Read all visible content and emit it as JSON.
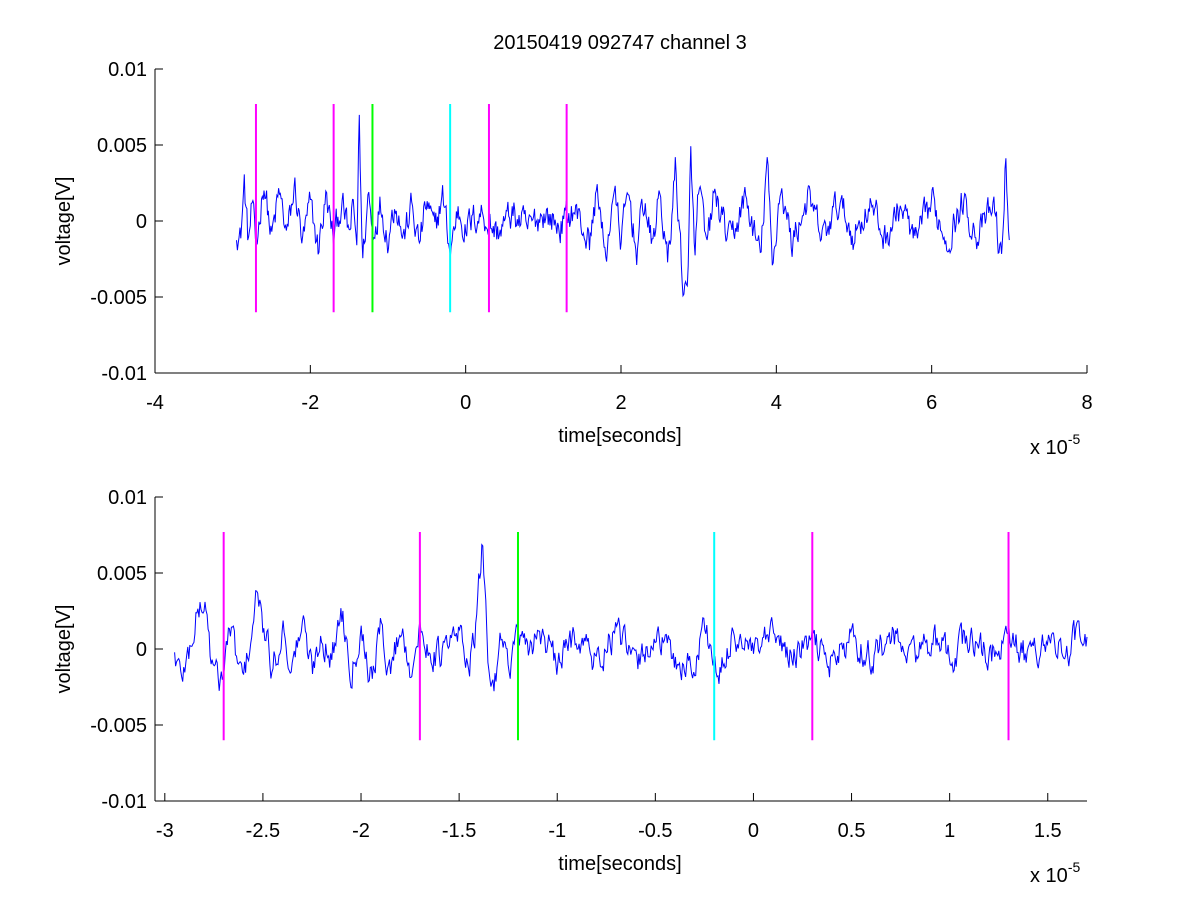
{
  "title": "20150419 092747 channel 3",
  "chart_data": [
    {
      "type": "line",
      "title": "20150419 092747 channel 3",
      "xlabel": "time[seconds]",
      "ylabel": "voltage[V]",
      "x_multiplier": "x 10",
      "x_exponent": "-5",
      "xlim": [
        -4,
        8
      ],
      "ylim": [
        -0.01,
        0.01
      ],
      "xticks": [
        -4,
        -2,
        0,
        2,
        4,
        6,
        8
      ],
      "xtick_labels": [
        "-4",
        "-2",
        "0",
        "2",
        "4",
        "6",
        "8"
      ],
      "yticks": [
        -0.01,
        -0.005,
        0,
        0.005,
        0.01
      ],
      "ytick_labels": [
        "-0.01",
        "-0.005",
        "0",
        "0.005",
        "0.01"
      ],
      "grid": false,
      "series": [
        {
          "color": "#0000ff",
          "x_range": [
            -2.95,
            7.0
          ],
          "points": [
            [
              -2.95,
              -0.0004
            ],
            [
              -2.9,
              -0.0012
            ],
            [
              -2.85,
              0.0025
            ],
            [
              -2.8,
              -0.0015
            ],
            [
              -2.75,
              0.001
            ],
            [
              -2.7,
              -0.002
            ],
            [
              -2.6,
              0.0028
            ],
            [
              -2.5,
              -0.0012
            ],
            [
              -2.4,
              0.0018
            ],
            [
              -2.3,
              -0.001
            ],
            [
              -2.2,
              0.0022
            ],
            [
              -2.1,
              -0.0015
            ],
            [
              -2.0,
              0.001
            ],
            [
              -1.9,
              -0.0018
            ],
            [
              -1.8,
              0.0015
            ],
            [
              -1.7,
              -0.0012
            ],
            [
              -1.6,
              0.0012
            ],
            [
              -1.5,
              -0.001
            ],
            [
              -1.45,
              0.0008
            ],
            [
              -1.4,
              -0.0015
            ],
            [
              -1.37,
              0.0071
            ],
            [
              -1.33,
              -0.0028
            ],
            [
              -1.25,
              0.002
            ],
            [
              -1.2,
              -0.0008
            ],
            [
              -1.1,
              0.0012
            ],
            [
              -1.0,
              -0.001
            ],
            [
              -0.9,
              0.0015
            ],
            [
              -0.8,
              -0.0012
            ],
            [
              -0.7,
              0.001
            ],
            [
              -0.6,
              -0.0015
            ],
            [
              -0.5,
              0.0012
            ],
            [
              -0.4,
              -0.0008
            ],
            [
              -0.3,
              0.0018
            ],
            [
              -0.2,
              -0.002
            ],
            [
              -0.1,
              0.0008
            ],
            [
              0.0,
              -0.0005
            ],
            [
              0.2,
              0.0006
            ],
            [
              0.4,
              -0.0008
            ],
            [
              0.6,
              0.0005
            ],
            [
              0.8,
              -0.0006
            ],
            [
              1.0,
              0.0006
            ],
            [
              1.2,
              -0.0004
            ],
            [
              1.4,
              0.0008
            ],
            [
              1.6,
              -0.0015
            ],
            [
              1.7,
              0.0025
            ],
            [
              1.8,
              -0.003
            ],
            [
              1.9,
              0.0022
            ],
            [
              2.0,
              -0.0012
            ],
            [
              2.1,
              0.0018
            ],
            [
              2.2,
              -0.002
            ],
            [
              2.3,
              0.0015
            ],
            [
              2.4,
              -0.0018
            ],
            [
              2.5,
              0.002
            ],
            [
              2.6,
              -0.003
            ],
            [
              2.7,
              0.0035
            ],
            [
              2.8,
              -0.0042
            ],
            [
              2.86,
              -0.0053
            ],
            [
              2.9,
              0.005
            ],
            [
              2.95,
              -0.003
            ],
            [
              3.0,
              0.0025
            ],
            [
              3.1,
              -0.002
            ],
            [
              3.2,
              0.0018
            ],
            [
              3.4,
              -0.0015
            ],
            [
              3.6,
              0.0015
            ],
            [
              3.8,
              -0.0025
            ],
            [
              3.88,
              0.0042
            ],
            [
              3.95,
              -0.0035
            ],
            [
              4.05,
              0.0025
            ],
            [
              4.2,
              -0.0015
            ],
            [
              4.4,
              0.0015
            ],
            [
              4.6,
              -0.0012
            ],
            [
              4.8,
              0.0012
            ],
            [
              5.0,
              -0.001
            ],
            [
              5.2,
              0.0012
            ],
            [
              5.4,
              -0.0012
            ],
            [
              5.6,
              0.001
            ],
            [
              5.8,
              -0.0015
            ],
            [
              6.0,
              0.0012
            ],
            [
              6.2,
              -0.0012
            ],
            [
              6.4,
              0.0012
            ],
            [
              6.6,
              -0.001
            ],
            [
              6.8,
              0.001
            ],
            [
              6.9,
              -0.0028
            ],
            [
              6.95,
              0.0038
            ],
            [
              7.0,
              -0.0008
            ]
          ]
        }
      ],
      "markers": [
        {
          "x": -2.7,
          "y_range": [
            -0.006,
            0.0077
          ],
          "color": "#ff00ff"
        },
        {
          "x": -1.7,
          "y_range": [
            -0.006,
            0.0077
          ],
          "color": "#ff00ff"
        },
        {
          "x": -1.2,
          "y_range": [
            -0.006,
            0.0077
          ],
          "color": "#00ff00"
        },
        {
          "x": -0.2,
          "y_range": [
            -0.006,
            0.0077
          ],
          "color": "#00ffff"
        },
        {
          "x": 0.3,
          "y_range": [
            -0.006,
            0.0077
          ],
          "color": "#ff00ff"
        },
        {
          "x": 1.3,
          "y_range": [
            -0.006,
            0.0077
          ],
          "color": "#ff00ff"
        }
      ]
    },
    {
      "type": "line",
      "title": "",
      "xlabel": "time[seconds]",
      "ylabel": "voltage[V]",
      "x_multiplier": "x 10",
      "x_exponent": "-5",
      "xlim": [
        -3.05,
        1.7
      ],
      "ylim": [
        -0.01,
        0.01
      ],
      "xticks": [
        -3,
        -2.5,
        -2,
        -1.5,
        -1,
        -0.5,
        0,
        0.5,
        1,
        1.5
      ],
      "xtick_labels": [
        "-3",
        "-2.5",
        "-2",
        "-1.5",
        "-1",
        "-0.5",
        "0",
        "0.5",
        "1",
        "1.5"
      ],
      "yticks": [
        -0.01,
        -0.005,
        0,
        0.005,
        0.01
      ],
      "ytick_labels": [
        "-0.01",
        "-0.005",
        "0",
        "0.005",
        "0.01"
      ],
      "grid": false,
      "series": [
        {
          "color": "#0000ff",
          "x_range": [
            -2.95,
            1.7
          ],
          "points": [
            [
              -2.95,
              -0.0003
            ],
            [
              -2.92,
              -0.0018
            ],
            [
              -2.88,
              -0.0005
            ],
            [
              -2.85,
              0.0015
            ],
            [
              -2.82,
              0.0028
            ],
            [
              -2.79,
              0.0028
            ],
            [
              -2.76,
              -0.001
            ],
            [
              -2.73,
              -0.0022
            ],
            [
              -2.7,
              -0.0015
            ],
            [
              -2.67,
              0.0015
            ],
            [
              -2.63,
              -0.0008
            ],
            [
              -2.6,
              -0.0022
            ],
            [
              -2.56,
              0.001
            ],
            [
              -2.53,
              0.0035
            ],
            [
              -2.5,
              0.0015
            ],
            [
              -2.45,
              -0.0015
            ],
            [
              -2.4,
              0.0015
            ],
            [
              -2.35,
              -0.0012
            ],
            [
              -2.3,
              0.0018
            ],
            [
              -2.25,
              -0.0015
            ],
            [
              -2.2,
              0.0012
            ],
            [
              -2.15,
              -0.0008
            ],
            [
              -2.1,
              0.0028
            ],
            [
              -2.05,
              -0.0012
            ],
            [
              -2.0,
              0.0015
            ],
            [
              -1.95,
              -0.0018
            ],
            [
              -1.9,
              0.0012
            ],
            [
              -1.85,
              -0.0015
            ],
            [
              -1.8,
              0.0015
            ],
            [
              -1.75,
              -0.001
            ],
            [
              -1.7,
              0.0008
            ],
            [
              -1.6,
              -0.0005
            ],
            [
              -1.5,
              0.001
            ],
            [
              -1.45,
              -0.0008
            ],
            [
              -1.42,
              0.0005
            ],
            [
              -1.38,
              0.007
            ],
            [
              -1.35,
              -0.0012
            ],
            [
              -1.32,
              -0.0025
            ],
            [
              -1.28,
              0.002
            ],
            [
              -1.25,
              -0.0015
            ],
            [
              -1.2,
              0.0012
            ],
            [
              -1.15,
              -0.0008
            ],
            [
              -1.1,
              0.0015
            ],
            [
              -1.0,
              -0.0012
            ],
            [
              -0.9,
              0.0012
            ],
            [
              -0.8,
              -0.001
            ],
            [
              -0.7,
              0.0012
            ],
            [
              -0.6,
              -0.0012
            ],
            [
              -0.5,
              0.001
            ],
            [
              -0.4,
              -0.0008
            ],
            [
              -0.3,
              -0.0012
            ],
            [
              -0.25,
              0.0018
            ],
            [
              -0.2,
              -0.0008
            ],
            [
              -0.18,
              -0.0025
            ],
            [
              -0.1,
              0.0012
            ],
            [
              0.0,
              -0.0005
            ],
            [
              0.1,
              0.0008
            ],
            [
              0.2,
              -0.0006
            ],
            [
              0.3,
              0.0005
            ],
            [
              0.4,
              -0.0008
            ],
            [
              0.5,
              0.0006
            ],
            [
              0.6,
              -0.0005
            ],
            [
              0.7,
              0.0008
            ],
            [
              0.8,
              -0.0005
            ],
            [
              0.9,
              0.0006
            ],
            [
              1.0,
              -0.0006
            ],
            [
              1.1,
              0.0008
            ],
            [
              1.2,
              -0.0005
            ],
            [
              1.3,
              0.0005
            ],
            [
              1.4,
              -0.0006
            ],
            [
              1.5,
              0.0008
            ],
            [
              1.6,
              -0.0005
            ],
            [
              1.65,
              0.0012
            ],
            [
              1.7,
              -0.0003
            ]
          ]
        }
      ],
      "markers": [
        {
          "x": -2.7,
          "y_range": [
            -0.006,
            0.0077
          ],
          "color": "#ff00ff"
        },
        {
          "x": -1.7,
          "y_range": [
            -0.006,
            0.0077
          ],
          "color": "#ff00ff"
        },
        {
          "x": -1.2,
          "y_range": [
            -0.006,
            0.0077
          ],
          "color": "#00ff00"
        },
        {
          "x": -0.2,
          "y_range": [
            -0.006,
            0.0077
          ],
          "color": "#00ffff"
        },
        {
          "x": 0.3,
          "y_range": [
            -0.006,
            0.0077
          ],
          "color": "#ff00ff"
        },
        {
          "x": 1.3,
          "y_range": [
            -0.006,
            0.0077
          ],
          "color": "#ff00ff"
        }
      ]
    }
  ]
}
